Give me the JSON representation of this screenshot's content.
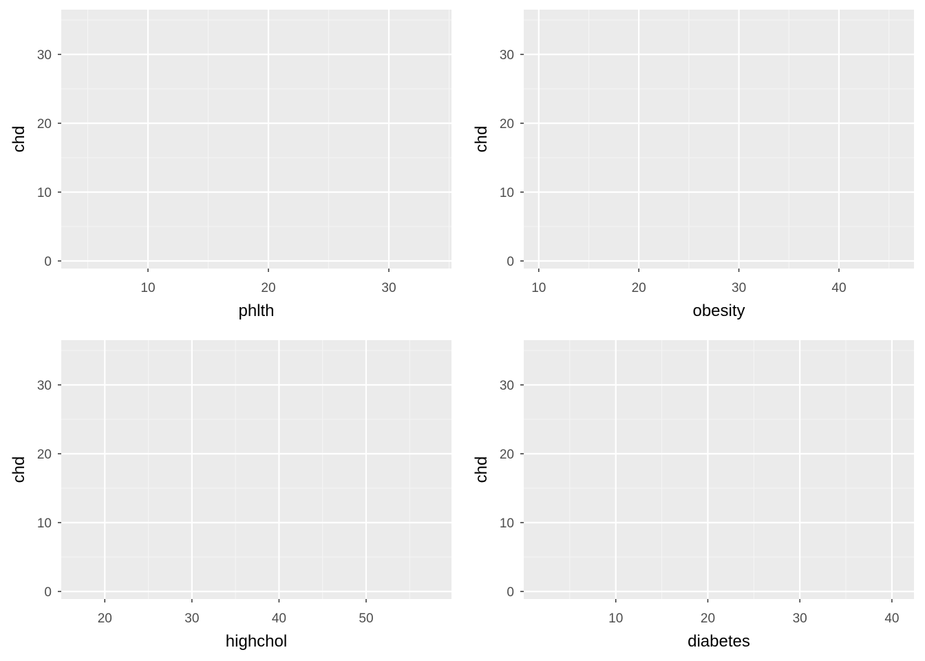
{
  "colors": {
    "panel_background": "#ebebeb",
    "grid_major": "#ffffff",
    "grid_minor": "#f5f5f5",
    "tick": "#333333",
    "tick_label": "#4d4d4d",
    "axis_title": "#000000"
  },
  "chart_data": [
    {
      "type": "scatter",
      "title": "",
      "xlabel": "phlth",
      "ylabel": "chd",
      "xlim": [
        2.8,
        35.2
      ],
      "ylim": [
        -1.1,
        36.5
      ],
      "xticks": [
        10,
        20,
        30
      ],
      "xtick_labels": [
        "10",
        "20",
        "30"
      ],
      "yticks": [
        0,
        10,
        20,
        30
      ],
      "ytick_labels": [
        "0",
        "10",
        "20",
        "30"
      ],
      "grid": true,
      "points": []
    },
    {
      "type": "scatter",
      "title": "",
      "xlabel": "obesity",
      "ylabel": "chd",
      "xlim": [
        8.5,
        47.5
      ],
      "ylim": [
        -1.1,
        36.5
      ],
      "xticks": [
        10,
        20,
        30,
        40
      ],
      "xtick_labels": [
        "10",
        "20",
        "30",
        "40"
      ],
      "yticks": [
        0,
        10,
        20,
        30
      ],
      "ytick_labels": [
        "0",
        "10",
        "20",
        "30"
      ],
      "grid": true,
      "points": []
    },
    {
      "type": "scatter",
      "title": "",
      "xlabel": "highchol",
      "ylabel": "chd",
      "xlim": [
        15.0,
        59.8
      ],
      "ylim": [
        -1.1,
        36.5
      ],
      "xticks": [
        20,
        30,
        40,
        50
      ],
      "xtick_labels": [
        "20",
        "30",
        "40",
        "50"
      ],
      "yticks": [
        0,
        10,
        20,
        30
      ],
      "ytick_labels": [
        "0",
        "10",
        "20",
        "30"
      ],
      "grid": true,
      "points": []
    },
    {
      "type": "scatter",
      "title": "",
      "xlabel": "diabetes",
      "ylabel": "chd",
      "xlim": [
        0.0,
        42.4
      ],
      "ylim": [
        -1.1,
        36.5
      ],
      "xticks": [
        10,
        20,
        30,
        40
      ],
      "xtick_labels": [
        "10",
        "20",
        "30",
        "40"
      ],
      "yticks": [
        0,
        10,
        20,
        30
      ],
      "ytick_labels": [
        "0",
        "10",
        "20",
        "30"
      ],
      "grid": true,
      "points": []
    }
  ]
}
